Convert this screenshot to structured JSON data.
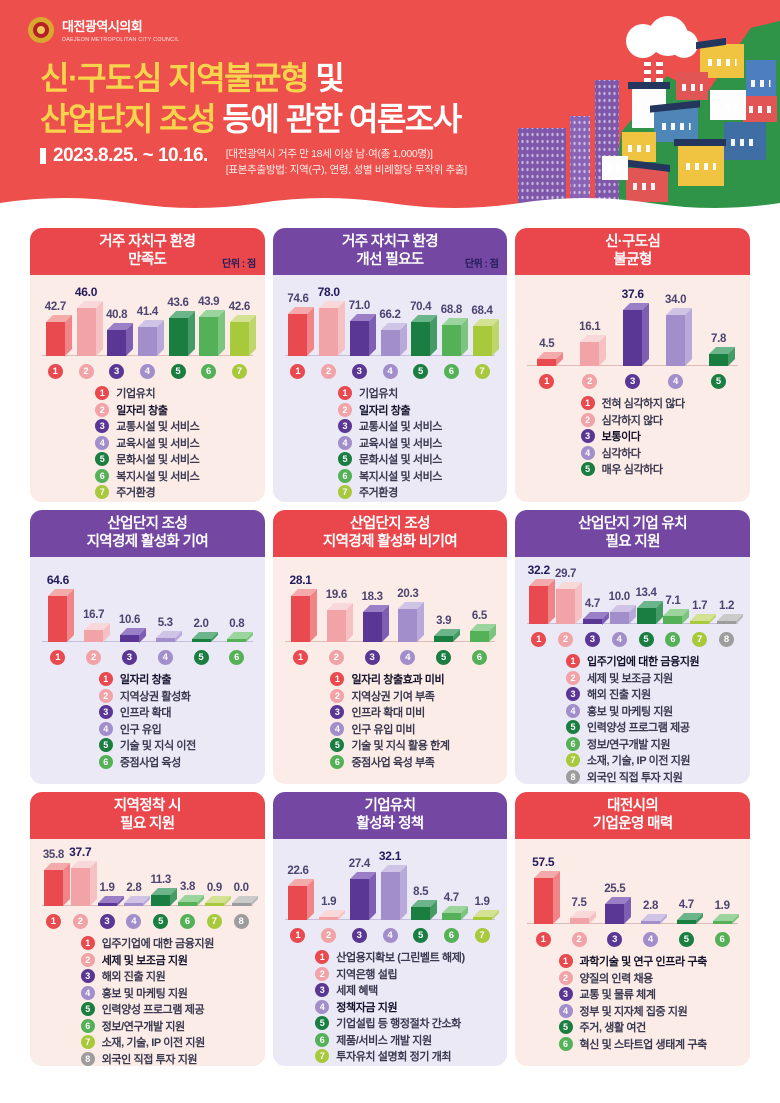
{
  "header": {
    "org_ko": "대전광역시의회",
    "org_en": "DAEJEON METROPOLITAN CITY COUNCIL",
    "title_l1_hl": "신·구도심 지역불균형",
    "title_l1_rest": " 및",
    "title_l2_hl": "산업단지 조성",
    "title_l2_rest": " 등에 관한 여론조사",
    "period": "2023.8.25. ~ 10.16.",
    "note1": "[대전광역시 거주 만 18세 이상 남·여(총 1,000명)]",
    "note2": "[표본추출방법: 지역(구), 연령, 성별 비례할당 무작위 추출]",
    "colors": {
      "bg": "#ec4f4c",
      "highlight": "#f8d44c",
      "text": "#ffffff"
    }
  },
  "palette": {
    "1": {
      "front": "#e84a4f",
      "side": "#f08486",
      "top": "#f4a9aa"
    },
    "2": {
      "front": "#f1a3a7",
      "side": "#f6c1c3",
      "top": "#f9d8d9"
    },
    "3": {
      "front": "#5b3795",
      "side": "#7e5eb3",
      "top": "#9a7fc7"
    },
    "4": {
      "front": "#a28ecb",
      "side": "#b9a9da",
      "top": "#cfc3e6"
    },
    "5": {
      "front": "#1a7e41",
      "side": "#449b66",
      "top": "#6cb489"
    },
    "6": {
      "front": "#55b158",
      "side": "#7cc57e",
      "top": "#9cd49e"
    },
    "7": {
      "front": "#a9c93d",
      "side": "#bfd76a",
      "top": "#d3e292"
    },
    "8": {
      "front": "#9d9d9d",
      "side": "#b7b7b7",
      "top": "#cbcbcb"
    }
  },
  "theme_colors": {
    "red_header": "#e9474c",
    "purple_header": "#7347a2",
    "red_body": "#fbece7",
    "purple_body": "#ebe9f5"
  },
  "chart_data": [
    {
      "id": "residence-env-satisfaction",
      "type": "bar",
      "theme": "red",
      "title_lines": [
        "거주 자치구 환경",
        "만족도"
      ],
      "unit": "단위 : 점",
      "values": [
        42.7,
        46.0,
        40.8,
        41.4,
        43.6,
        43.9,
        42.6
      ],
      "colors": [
        1,
        2,
        3,
        4,
        5,
        6,
        7
      ],
      "bold_index": 1,
      "legend": [
        "기업유치",
        "일자리 창출",
        "교통시설 및 서비스",
        "교육시설 및 서비스",
        "문화시설 및 서비스",
        "복지시설 및 서비스",
        "주거환경"
      ]
    },
    {
      "id": "residence-env-improvement-need",
      "type": "bar",
      "theme": "purple",
      "title_lines": [
        "거주 자치구 환경",
        "개선 필요도"
      ],
      "unit": "단위 : 점",
      "values": [
        74.6,
        78.0,
        71.0,
        66.2,
        70.4,
        68.8,
        68.4
      ],
      "colors": [
        1,
        2,
        3,
        4,
        5,
        6,
        7
      ],
      "bold_index": 1,
      "legend": [
        "기업유치",
        "일자리 창출",
        "교통시설 및 서비스",
        "교육시설 및 서비스",
        "문화시설 및 서비스",
        "복지시설 및 서비스",
        "주거환경"
      ]
    },
    {
      "id": "new-old-downtown-imbalance",
      "type": "bar",
      "theme": "red",
      "title_lines": [
        "신·구도심",
        "불균형"
      ],
      "unit": "",
      "values": [
        4.5,
        16.1,
        37.6,
        34.0,
        7.8
      ],
      "colors": [
        1,
        2,
        3,
        4,
        5
      ],
      "bold_index": 2,
      "legend": [
        "전혀 심각하지 않다",
        "심각하지 않다",
        "보통이다",
        "심각하다",
        "매우 심각하다"
      ]
    },
    {
      "id": "industrial-complex-contribution",
      "type": "bar",
      "theme": "purple",
      "title_lines": [
        "산업단지 조성",
        "지역경제 활성화 기여"
      ],
      "unit": "",
      "values": [
        64.6,
        16.7,
        10.6,
        5.3,
        2.0,
        0.8
      ],
      "colors": [
        1,
        2,
        3,
        4,
        5,
        6
      ],
      "bold_index": 0,
      "legend": [
        "일자리 창출",
        "지역상권 활성화",
        "인프라 확대",
        "인구 유입",
        "기술 및 지식 이전",
        "중점사업 육성"
      ]
    },
    {
      "id": "industrial-complex-non-contribution",
      "type": "bar",
      "theme": "red",
      "title_lines": [
        "산업단지 조성",
        "지역경제 활성화 비기여"
      ],
      "unit": "",
      "values": [
        28.1,
        19.6,
        18.3,
        20.3,
        3.9,
        6.5
      ],
      "colors": [
        1,
        2,
        3,
        4,
        5,
        6
      ],
      "bold_index": 0,
      "legend": [
        "일자리 창출효과 미비",
        "지역상권 기여 부족",
        "인프라 확대 미비",
        "인구 유입 미비",
        "기술 및 지식 활용 한계",
        "중점사업 육성 부족"
      ]
    },
    {
      "id": "industrial-complex-attraction-support",
      "type": "bar",
      "theme": "purple",
      "title_lines": [
        "산업단지 기업 유치",
        "필요 지원"
      ],
      "unit": "",
      "values": [
        32.2,
        29.7,
        4.7,
        10.0,
        13.4,
        7.1,
        1.7,
        1.2
      ],
      "colors": [
        1,
        2,
        3,
        4,
        5,
        6,
        7,
        8
      ],
      "bold_index": 0,
      "legend": [
        "입주기업에 대한 금융지원",
        "세제 및 보조금 지원",
        "해외 진출 지원",
        "홍보 및 마케팅 지원",
        "인력양성 프로그램 제공",
        "정보/연구개발 지원",
        "소재, 기술, IP 이전 지원",
        "외국인 직접 투자 지원"
      ]
    },
    {
      "id": "local-settlement-support",
      "type": "bar",
      "theme": "red",
      "title_lines": [
        "지역정착 시",
        "필요 지원"
      ],
      "unit": "",
      "values": [
        35.8,
        37.7,
        1.9,
        2.8,
        11.3,
        3.8,
        0.9,
        0.0
      ],
      "colors": [
        1,
        2,
        3,
        4,
        5,
        6,
        7,
        8
      ],
      "bold_index": 1,
      "legend": [
        "입주기업에 대한 금융지원",
        "세제 및 보조금 지원",
        "해외 진출 지원",
        "홍보 및 마케팅 지원",
        "인력양성 프로그램 제공",
        "정보/연구개발 지원",
        "소재, 기술, IP 이전 지원",
        "외국인 직접 투자 지원"
      ]
    },
    {
      "id": "business-attraction-policy",
      "type": "bar",
      "theme": "purple",
      "title_lines": [
        "기업유치",
        "활성화 정책"
      ],
      "unit": "",
      "values": [
        22.6,
        1.9,
        27.4,
        32.1,
        8.5,
        4.7,
        1.9
      ],
      "colors": [
        1,
        2,
        3,
        4,
        5,
        6,
        7
      ],
      "bold_index": 3,
      "legend": [
        "산업용지확보 (그린벨트 해제)",
        "지역은행 설립",
        "세제 혜택",
        "정책자금 지원",
        "기업설립 등 행정절차 간소화",
        "제품/서비스 개발 지원",
        "투자유치 설명회 정기 개최"
      ]
    },
    {
      "id": "daejeon-business-appeal",
      "type": "bar",
      "theme": "red",
      "title_lines": [
        "대전시의",
        "기업운영 매력"
      ],
      "unit": "",
      "values": [
        57.5,
        7.5,
        25.5,
        2.8,
        4.7,
        1.9
      ],
      "colors": [
        1,
        2,
        3,
        4,
        5,
        6
      ],
      "bold_index": 0,
      "legend": [
        "과학기술 및 연구 인프라 구축",
        "양질의 인력 채용",
        "교통 및 물류 체계",
        "정부 및 지자체 집중 지원",
        "주거, 생활 여건",
        "혁신 및 스타트업 생태계 구축"
      ]
    }
  ]
}
